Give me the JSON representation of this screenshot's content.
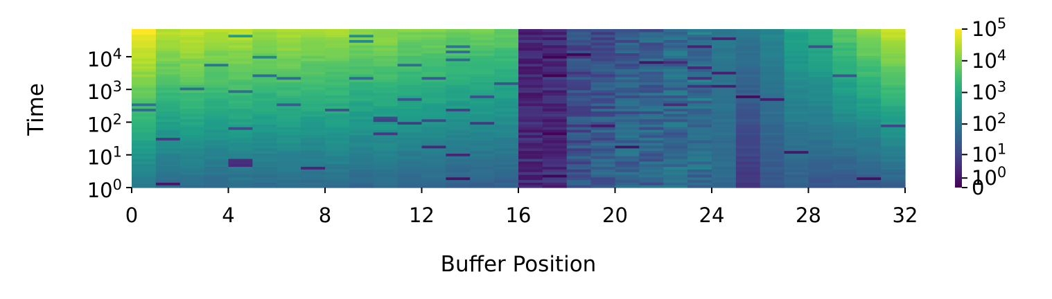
{
  "chart_data": {
    "type": "heatmap",
    "title": "",
    "xlabel": "Buffer Position",
    "ylabel": "Time",
    "x_range": [
      0,
      32
    ],
    "x_ticks": [
      "0",
      "4",
      "8",
      "12",
      "16",
      "20",
      "24",
      "28",
      "32"
    ],
    "y_scale": "log",
    "y_ticks": [
      {
        "base": "10",
        "exp": "0"
      },
      {
        "base": "10",
        "exp": "1"
      },
      {
        "base": "10",
        "exp": "2"
      },
      {
        "base": "10",
        "exp": "3"
      },
      {
        "base": "10",
        "exp": "4"
      }
    ],
    "y_range": [
      1,
      70000
    ],
    "colorbar": {
      "colormap": "viridis",
      "scale": "symlog",
      "range": [
        0,
        100000
      ],
      "ticks": [
        {
          "base": "0",
          "exp": ""
        },
        {
          "base": "10",
          "exp": "0"
        },
        {
          "base": "10",
          "exp": "1"
        },
        {
          "base": "10",
          "exp": "2"
        },
        {
          "base": "10",
          "exp": "3"
        },
        {
          "base": "10",
          "exp": "4"
        },
        {
          "base": "10",
          "exp": "5"
        }
      ]
    },
    "column_profile": [
      {
        "position": 0,
        "value_low": 100,
        "value_high": 100000
      },
      {
        "position": 1,
        "value_low": 50,
        "value_high": 30000
      },
      {
        "position": 2,
        "value_low": 60,
        "value_high": 40000
      },
      {
        "position": 3,
        "value_low": 50,
        "value_high": 25000
      },
      {
        "position": 4,
        "value_low": 60,
        "value_high": 30000
      },
      {
        "position": 5,
        "value_low": 50,
        "value_high": 20000
      },
      {
        "position": 6,
        "value_low": 60,
        "value_high": 25000
      },
      {
        "position": 7,
        "value_low": 50,
        "value_high": 20000
      },
      {
        "position": 8,
        "value_low": 60,
        "value_high": 20000
      },
      {
        "position": 9,
        "value_low": 40,
        "value_high": 15000
      },
      {
        "position": 10,
        "value_low": 50,
        "value_high": 15000
      },
      {
        "position": 11,
        "value_low": 40,
        "value_high": 10000
      },
      {
        "position": 12,
        "value_low": 40,
        "value_high": 10000
      },
      {
        "position": 13,
        "value_low": 30,
        "value_high": 8000
      },
      {
        "position": 14,
        "value_low": 30,
        "value_high": 8000
      },
      {
        "position": 15,
        "value_low": 30,
        "value_high": 6000
      },
      {
        "position": 16,
        "value_low": 3,
        "value_high": 2
      },
      {
        "position": 17,
        "value_low": 3,
        "value_high": 3
      },
      {
        "position": 18,
        "value_low": 20,
        "value_high": 10
      },
      {
        "position": 19,
        "value_low": 30,
        "value_high": 15
      },
      {
        "position": 20,
        "value_low": 40,
        "value_high": 20
      },
      {
        "position": 21,
        "value_low": 40,
        "value_high": 30
      },
      {
        "position": 22,
        "value_low": 50,
        "value_high": 50
      },
      {
        "position": 23,
        "value_low": 50,
        "value_high": 80
      },
      {
        "position": 24,
        "value_low": 50,
        "value_high": 100
      },
      {
        "position": 25,
        "value_low": 5,
        "value_high": 100
      },
      {
        "position": 26,
        "value_low": 20,
        "value_high": 200
      },
      {
        "position": 27,
        "value_low": 30,
        "value_high": 800
      },
      {
        "position": 28,
        "value_low": 20,
        "value_high": 1500
      },
      {
        "position": 29,
        "value_low": 20,
        "value_high": 5000
      },
      {
        "position": 30,
        "value_low": 20,
        "value_high": 15000
      },
      {
        "position": 31,
        "value_low": 30,
        "value_high": 40000
      }
    ]
  }
}
